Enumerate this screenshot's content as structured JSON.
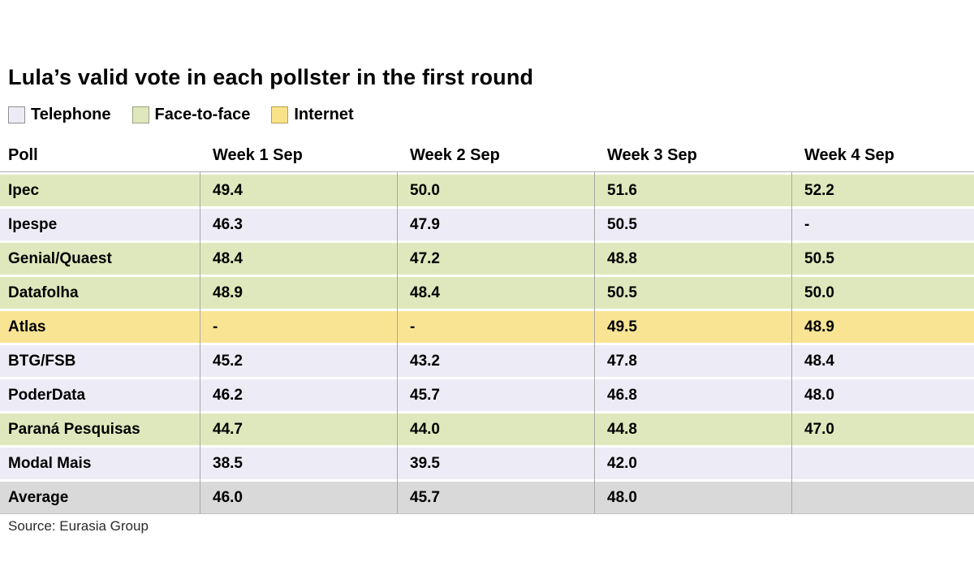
{
  "title": "Lula’s valid vote in each pollster in the first round",
  "legend": {
    "items": [
      {
        "label": "Telephone",
        "method": "telephone",
        "color": "#edecf6"
      },
      {
        "label": "Face-to-face",
        "method": "face-to-face",
        "color": "#dfe8bc"
      },
      {
        "label": "Internet",
        "method": "internet",
        "color": "#f9e494"
      }
    ]
  },
  "source": "Source: Eurasia Group",
  "chart_data": {
    "type": "table",
    "title": "Lula’s valid vote in each pollster in the first round",
    "columns": [
      "Poll",
      "Week 1 Sep",
      "Week 2 Sep",
      "Week 3 Sep",
      "Week 4 Sep"
    ],
    "row_color_legend": {
      "telephone": "#edecf6",
      "face-to-face": "#dfe8bc",
      "internet": "#f9e494",
      "average": "#d9d9d9"
    },
    "rows": [
      {
        "poll": "Ipec",
        "method": "face-to-face",
        "values": [
          "49.4",
          "50.0",
          "51.6",
          "52.2"
        ]
      },
      {
        "poll": "Ipespe",
        "method": "telephone",
        "values": [
          "46.3",
          "47.9",
          "50.5",
          "-"
        ]
      },
      {
        "poll": "Genial/Quaest",
        "method": "face-to-face",
        "values": [
          "48.4",
          "47.2",
          "48.8",
          "50.5"
        ]
      },
      {
        "poll": "Datafolha",
        "method": "face-to-face",
        "values": [
          "48.9",
          "48.4",
          "50.5",
          "50.0"
        ]
      },
      {
        "poll": "Atlas",
        "method": "internet",
        "values": [
          "-",
          "-",
          "49.5",
          "48.9"
        ]
      },
      {
        "poll": "BTG/FSB",
        "method": "telephone",
        "values": [
          "45.2",
          "43.2",
          "47.8",
          "48.4"
        ]
      },
      {
        "poll": "PoderData",
        "method": "telephone",
        "values": [
          "46.2",
          "45.7",
          "46.8",
          "48.0"
        ]
      },
      {
        "poll": "Paraná Pesquisas",
        "method": "face-to-face",
        "values": [
          "44.7",
          "44.0",
          "44.8",
          "47.0"
        ]
      },
      {
        "poll": "Modal Mais",
        "method": "telephone",
        "values": [
          "38.5",
          "39.5",
          "42.0",
          ""
        ]
      },
      {
        "poll": "Average",
        "method": "average",
        "values": [
          "46.0",
          "45.7",
          "48.0",
          ""
        ]
      }
    ]
  }
}
